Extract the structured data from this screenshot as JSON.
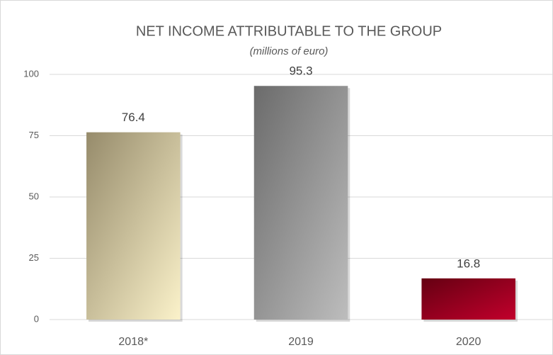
{
  "chart_data": {
    "type": "bar",
    "title": "NET INCOME ATTRIBUTABLE TO THE GROUP",
    "subtitle": "(millions of euro)",
    "categories": [
      "2018*",
      "2019",
      "2020"
    ],
    "values": [
      76.4,
      95.3,
      16.8
    ],
    "colors": [
      [
        "#968b6b",
        "#fbf2ca"
      ],
      [
        "#6b6b6b",
        "#bdbdbd"
      ],
      [
        "#650012",
        "#c2002c"
      ]
    ],
    "ylim": [
      0,
      100
    ],
    "yticks": [
      0,
      25,
      50,
      75,
      100
    ],
    "grid": true
  }
}
